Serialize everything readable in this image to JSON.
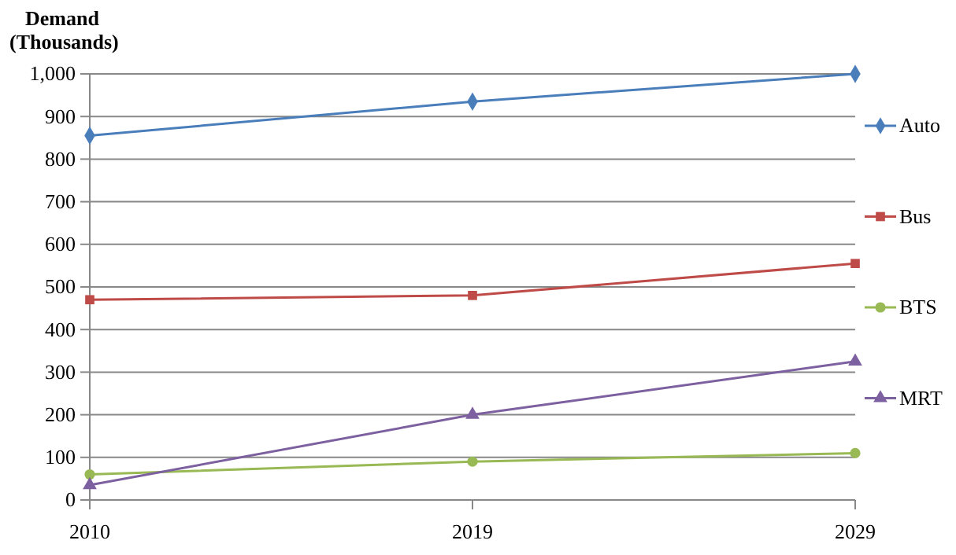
{
  "chart_data": {
    "type": "line",
    "ylabel": "Demand\n(Thousands)",
    "categories": [
      "2010",
      "2019",
      "2029"
    ],
    "series": [
      {
        "name": "Auto",
        "color": "#4a7ebb",
        "marker": "diamond",
        "values": [
          855,
          935,
          1000
        ]
      },
      {
        "name": "Bus",
        "color": "#be4b48",
        "marker": "square",
        "values": [
          470,
          480,
          555
        ]
      },
      {
        "name": "BTS",
        "color": "#98b954",
        "marker": "circle",
        "values": [
          60,
          90,
          110
        ]
      },
      {
        "name": "MRT",
        "color": "#7d60a0",
        "marker": "triangle",
        "values": [
          35,
          200,
          325
        ]
      }
    ],
    "ylim": [
      0,
      1000
    ],
    "yticks": [
      0,
      100,
      200,
      300,
      400,
      500,
      600,
      700,
      800,
      900,
      {
        "value": 1000,
        "label": "1,000"
      }
    ],
    "grid": "y",
    "legend": "right"
  }
}
